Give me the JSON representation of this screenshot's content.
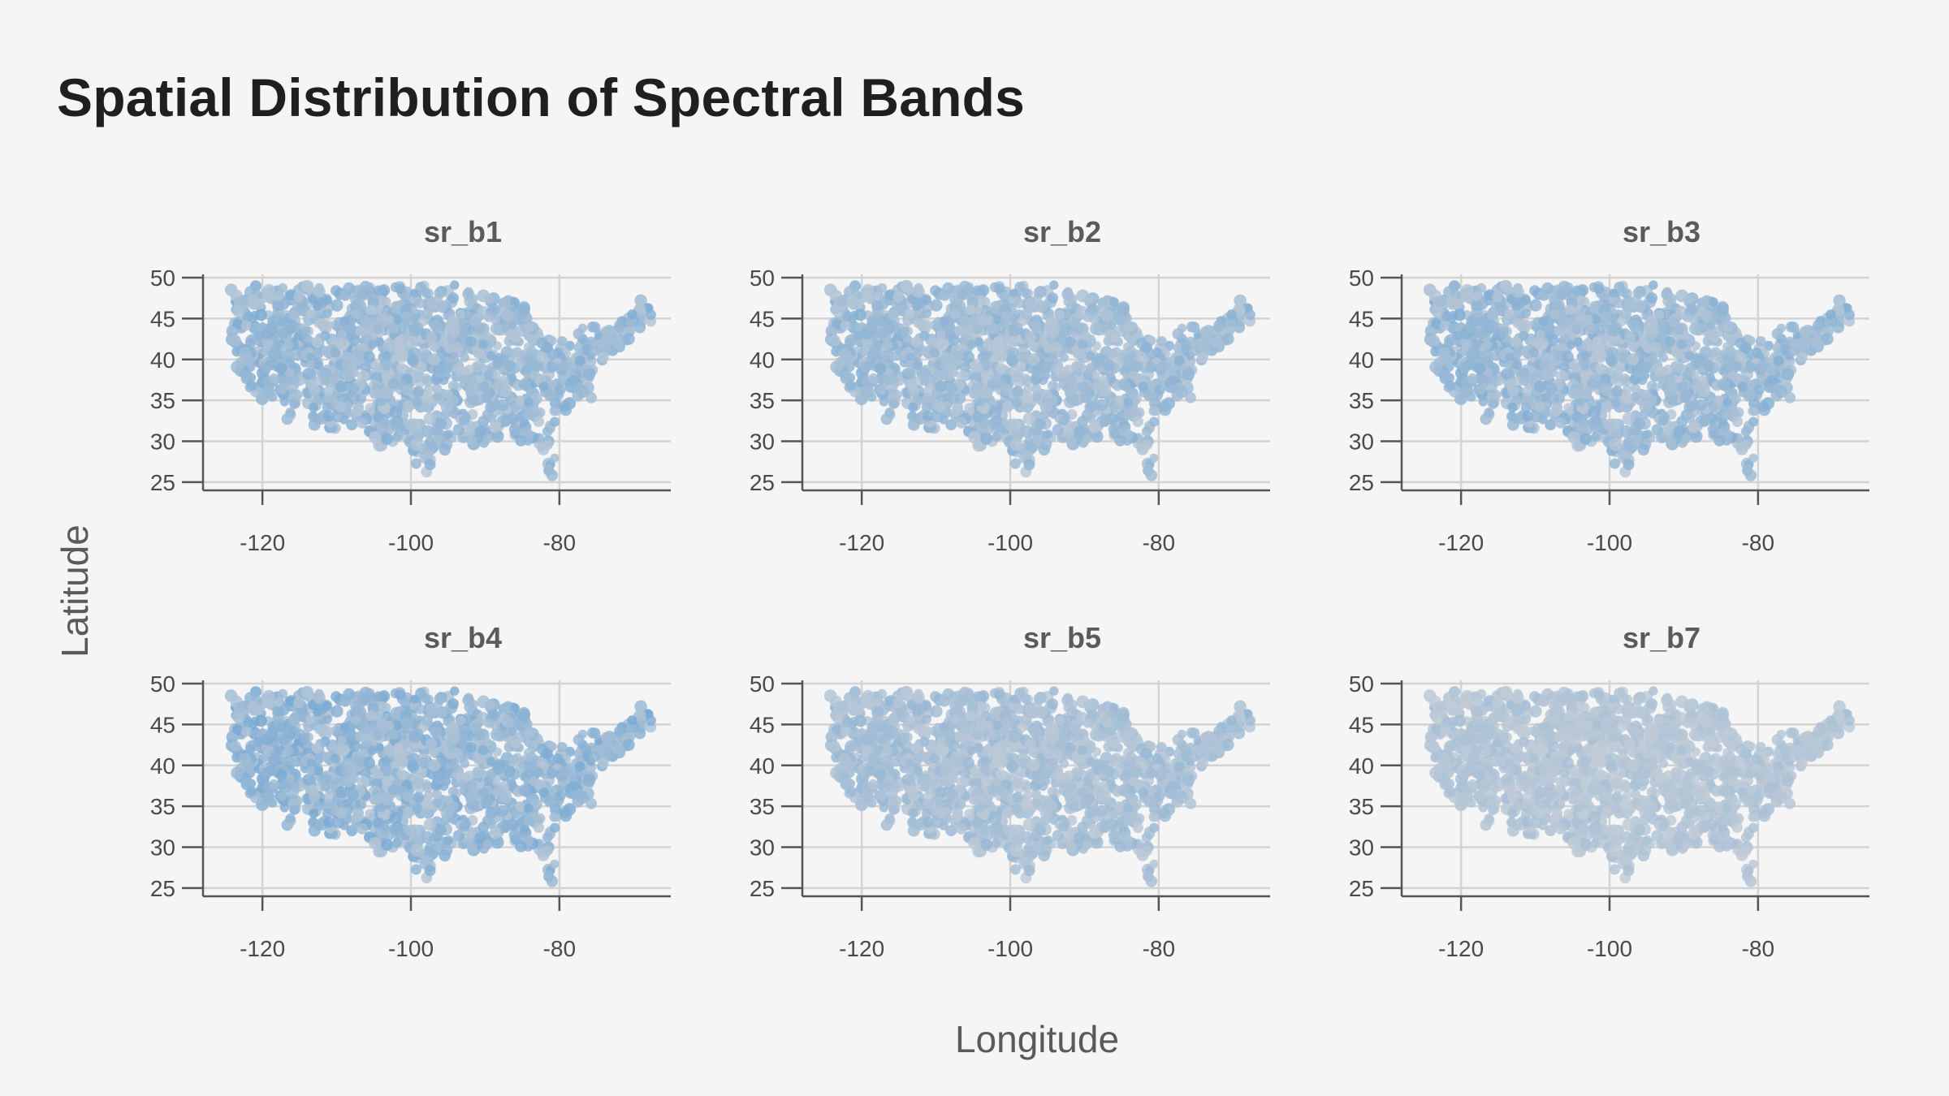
{
  "title": "Spatial Distribution of Spectral Bands",
  "colors": {
    "background": "#f5f5f5",
    "point_low": "#cdd1d7",
    "point_high": "#4d95d2",
    "grid": "#d3d3d3",
    "axis": "#555555"
  },
  "chart_data": {
    "type": "scatter",
    "title": "Spatial Distribution of Spectral Bands",
    "xlabel": "Longitude",
    "ylabel": "Latitude",
    "xlim": [
      -128,
      -65
    ],
    "ylim": [
      24,
      50
    ],
    "x_ticks": [
      -120,
      -100,
      -80
    ],
    "y_ticks": [
      25,
      30,
      35,
      40,
      45,
      50
    ],
    "grid": true,
    "layout": "2 rows x 3 columns facet grid",
    "encoding": "point color intensity represents band value (grey = low, blue = high)",
    "panels": [
      {
        "name": "sr_b1",
        "intensity": 0.5
      },
      {
        "name": "sr_b2",
        "intensity": 0.45
      },
      {
        "name": "sr_b3",
        "intensity": 0.48
      },
      {
        "name": "sr_b4",
        "intensity": 0.55
      },
      {
        "name": "sr_b5",
        "intensity": 0.36
      },
      {
        "name": "sr_b7",
        "intensity": 0.25
      }
    ]
  }
}
